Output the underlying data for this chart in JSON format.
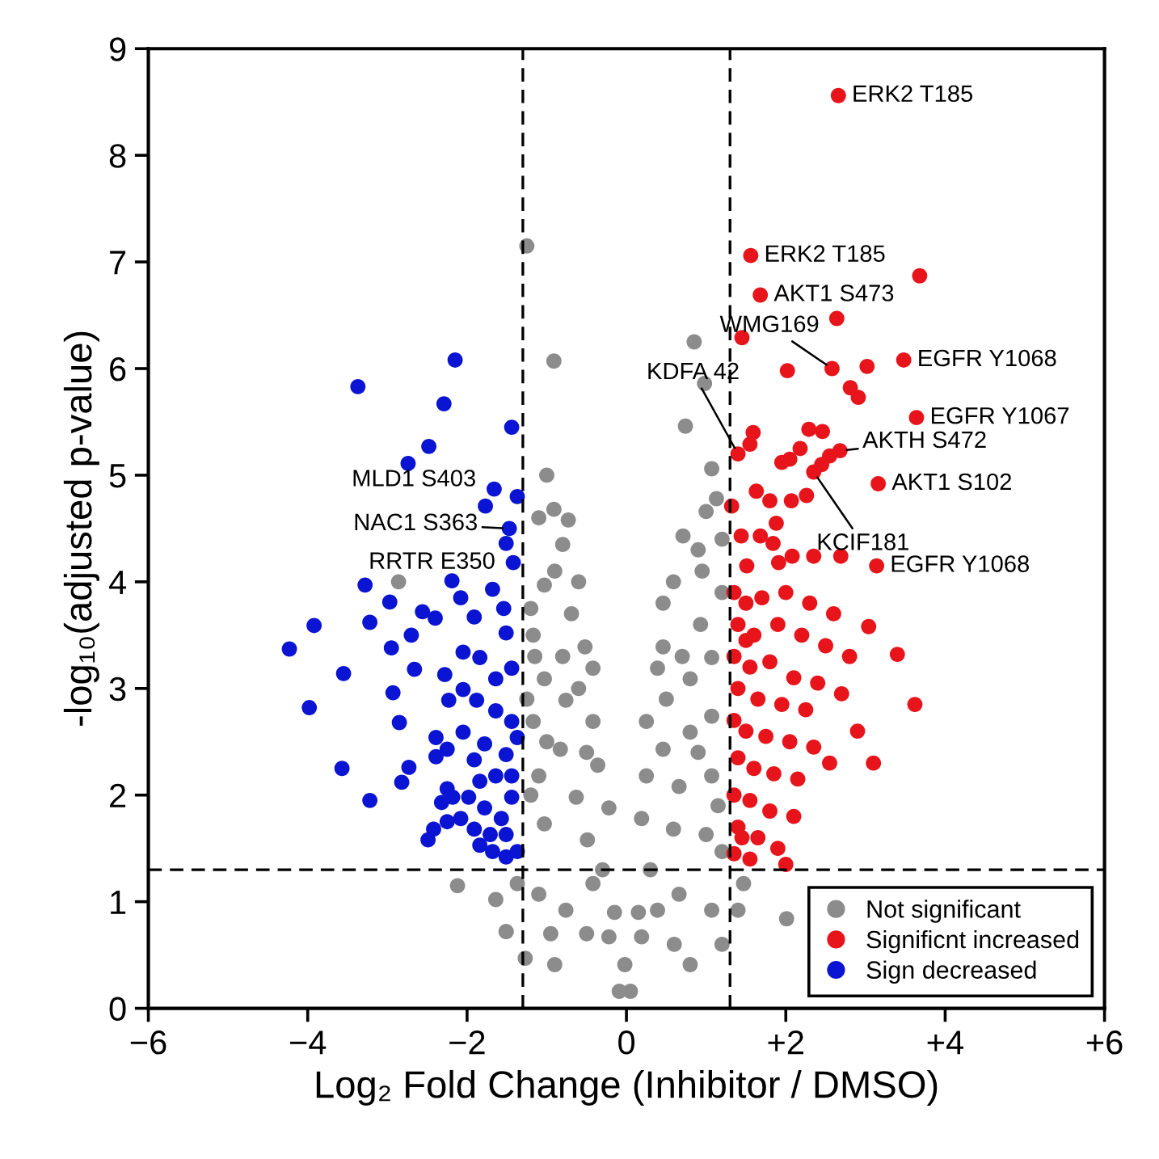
{
  "chart_data": {
    "type": "scatter",
    "xlabel": "Log₂ Fold Change (Inhibitor / DMSO)",
    "ylabel": "-log₁₀(adjusted p-value)",
    "xlim": [
      -6,
      6
    ],
    "ylim": [
      0,
      9
    ],
    "xticks": [
      {
        "value": -6,
        "label": "−6"
      },
      {
        "value": -4,
        "label": "−4"
      },
      {
        "value": -2,
        "label": "−2"
      },
      0,
      {
        "value": 2,
        "label": "+2"
      },
      {
        "value": 4,
        "label": "+4"
      },
      {
        "value": 6,
        "label": "+6"
      }
    ],
    "yticks": [
      0,
      1,
      2,
      3,
      4,
      5,
      6,
      7,
      8,
      9
    ],
    "grid": false,
    "legend": "bottom right",
    "marker": "circle",
    "ref_lines": [
      {
        "axis": "x",
        "value": -1.3,
        "color": "#000000",
        "line_style": "dashed"
      },
      {
        "axis": "x",
        "value": 1.3,
        "color": "#000000",
        "line_style": "dashed"
      },
      {
        "axis": "y",
        "value": 1.3,
        "color": "#000000",
        "line_style": "dashed"
      }
    ],
    "series": [
      {
        "name": "Not significant",
        "color": "#8c8c8c",
        "x": [
          -1.25,
          -0.91,
          0.85,
          0.98,
          0.74,
          -1.0,
          -0.91,
          -0.73,
          1.07,
          1.13,
          1.0,
          0.71,
          0.9,
          -0.8,
          -0.9,
          -1.03,
          -1.2,
          -1.17,
          -0.69,
          -0.52,
          -0.42,
          0.46,
          0.59,
          0.46,
          0.39,
          0.93,
          1.07,
          0.8,
          -1.03,
          -0.76,
          -1.17,
          -0.42,
          -0.83,
          -1.1,
          -0.36,
          -0.63,
          -0.22,
          -1.03,
          -0.49,
          0.25,
          0.46,
          0.8,
          1.07,
          0.25,
          0.66,
          1.07,
          0.19,
          0.59,
          1.0,
          1.2,
          -1.37,
          -1.51,
          -1.1,
          -0.76,
          -0.42,
          -0.22,
          -0.09,
          0.05,
          -0.02,
          0.19,
          0.39,
          0.66,
          1.07,
          1.47,
          1.4,
          2.01,
          -0.9,
          0.8,
          -2.12,
          -1.64,
          -1.51,
          -1.27,
          -2.86,
          -1.2,
          -1.0,
          -0.6,
          -0.8,
          -0.5,
          -0.3,
          0.3,
          0.5,
          0.7,
          0.9,
          1.15,
          -1.25,
          -1.15,
          0.95,
          1.2,
          1.2,
          -0.6,
          -1.1,
          -0.95,
          0.6,
          1.2,
          -0.5,
          -0.15,
          0.15
        ],
        "values": [
          7.15,
          6.07,
          6.25,
          5.86,
          5.46,
          5.0,
          4.68,
          4.58,
          5.06,
          4.78,
          4.66,
          4.43,
          4.3,
          4.35,
          4.1,
          3.97,
          3.75,
          3.5,
          3.7,
          3.39,
          3.19,
          3.8,
          4.0,
          3.39,
          3.19,
          3.6,
          3.29,
          3.09,
          3.09,
          2.89,
          2.69,
          2.69,
          2.43,
          2.18,
          2.28,
          1.98,
          1.88,
          1.73,
          1.58,
          2.69,
          2.43,
          2.59,
          2.74,
          2.18,
          2.08,
          2.18,
          1.78,
          1.68,
          1.63,
          1.47,
          1.17,
          0.72,
          1.07,
          0.92,
          1.17,
          0.67,
          0.16,
          0.16,
          0.41,
          0.67,
          0.92,
          1.07,
          0.92,
          1.17,
          0.92,
          0.84,
          0.41,
          0.41,
          1.15,
          1.02,
          0.72,
          0.47,
          4.0,
          2.0,
          2.5,
          3.0,
          3.3,
          2.4,
          1.3,
          1.3,
          2.9,
          3.3,
          2.4,
          1.9,
          2.9,
          3.3,
          4.1,
          3.9,
          4.4,
          4.0,
          4.6,
          0.7,
          0.6,
          0.6,
          0.7,
          0.9,
          0.9
        ]
      },
      {
        "name": "Significnt increased",
        "color": "#e8141b",
        "x": [
          2.66,
          1.56,
          3.68,
          1.68,
          2.64,
          1.45,
          2.02,
          2.58,
          3.02,
          3.48,
          2.81,
          2.91,
          3.64,
          1.59,
          1.55,
          1.4,
          2.29,
          2.46,
          2.18,
          2.05,
          1.95,
          2.68,
          2.55,
          2.45,
          2.35,
          3.16,
          1.63,
          1.8,
          2.07,
          2.26,
          1.32,
          1.88,
          1.44,
          1.68,
          1.84,
          1.51,
          1.91,
          2.08,
          2.35,
          2.69,
          3.14,
          1.35,
          1.5,
          1.7,
          2.0,
          2.3,
          2.6,
          1.4,
          1.6,
          1.9,
          2.2,
          2.5,
          2.8,
          1.35,
          1.55,
          1.8,
          2.1,
          2.4,
          2.7,
          1.4,
          1.65,
          1.95,
          2.25,
          1.35,
          1.5,
          1.75,
          2.05,
          2.35,
          1.4,
          1.6,
          1.85,
          2.15,
          1.35,
          1.55,
          1.8,
          2.1,
          1.4,
          1.65,
          1.9,
          1.35,
          1.55,
          2.0,
          1.45,
          1.5,
          2.55,
          3.62,
          3.1,
          3.4,
          3.04,
          2.9
        ],
        "values": [
          8.56,
          7.06,
          6.87,
          6.69,
          6.47,
          6.29,
          5.98,
          6.0,
          6.02,
          6.08,
          5.82,
          5.73,
          5.54,
          5.4,
          5.29,
          5.2,
          5.43,
          5.41,
          5.25,
          5.15,
          5.12,
          5.23,
          5.18,
          5.1,
          5.03,
          4.92,
          4.85,
          4.76,
          4.76,
          4.81,
          4.71,
          4.55,
          4.43,
          4.43,
          4.36,
          4.15,
          4.18,
          4.24,
          4.24,
          4.24,
          4.15,
          3.9,
          3.8,
          3.85,
          3.9,
          3.8,
          3.7,
          3.6,
          3.5,
          3.6,
          3.5,
          3.4,
          3.3,
          3.3,
          3.2,
          3.25,
          3.1,
          3.05,
          2.95,
          3.0,
          2.9,
          2.85,
          2.8,
          2.7,
          2.6,
          2.55,
          2.5,
          2.45,
          2.35,
          2.25,
          2.2,
          2.15,
          2.0,
          1.95,
          1.85,
          1.8,
          1.7,
          1.6,
          1.5,
          1.45,
          1.4,
          1.35,
          1.6,
          3.45,
          2.3,
          2.85,
          2.3,
          3.32,
          3.58,
          2.6
        ]
      },
      {
        "name": "Sign decreased",
        "color": "#0a14d2",
        "x": [
          -2.15,
          -3.37,
          -2.29,
          -1.44,
          -2.48,
          -2.74,
          -1.66,
          -1.37,
          -1.77,
          -1.51,
          -1.42,
          -3.28,
          -2.19,
          -1.68,
          -3.92,
          -4.23,
          -3.22,
          -2.97,
          -2.56,
          -2.4,
          -2.95,
          -2.7,
          -3.55,
          -3.98,
          -2.93,
          -2.66,
          -2.85,
          -3.57,
          -2.73,
          -2.82,
          -3.22,
          -2.28,
          -2.23,
          -2.08,
          -1.91,
          -2.05,
          -1.84,
          -1.54,
          -1.51,
          -1.64,
          -1.44,
          -2.05,
          -1.88,
          -1.64,
          -1.44,
          -2.39,
          -2.25,
          -2.05,
          -1.91,
          -1.78,
          -1.51,
          -1.37,
          -2.39,
          -2.25,
          -2.18,
          -2.32,
          -2.08,
          -2.25,
          -2.42,
          -2.49,
          -1.91,
          -1.84,
          -1.68,
          -1.51,
          -1.37,
          -1.98,
          -1.78,
          -1.57,
          -1.44,
          -1.64,
          -1.44,
          -1.84,
          -1.51,
          -1.71,
          -1.47
        ],
        "values": [
          6.08,
          5.83,
          5.67,
          5.45,
          5.27,
          5.11,
          4.87,
          4.8,
          4.71,
          4.36,
          4.18,
          3.97,
          4.01,
          3.93,
          3.59,
          3.37,
          3.62,
          3.81,
          3.72,
          3.66,
          3.38,
          3.5,
          3.14,
          2.82,
          2.96,
          3.18,
          2.68,
          2.25,
          2.26,
          2.12,
          1.95,
          3.13,
          2.89,
          3.85,
          3.67,
          3.34,
          3.29,
          3.75,
          3.52,
          3.09,
          3.19,
          2.99,
          2.89,
          2.79,
          2.69,
          2.54,
          2.43,
          2.59,
          2.33,
          2.48,
          2.38,
          2.54,
          2.36,
          2.06,
          1.98,
          1.93,
          1.78,
          1.75,
          1.68,
          1.58,
          1.68,
          1.53,
          1.47,
          1.42,
          1.47,
          1.98,
          1.88,
          1.78,
          1.98,
          2.18,
          2.18,
          2.13,
          1.63,
          1.63,
          4.5
        ]
      }
    ],
    "annotations": [
      {
        "text": "ERK2 T185",
        "x": 2.66,
        "y": 8.56
      },
      {
        "text": "ERK2 T185",
        "x": 1.56,
        "y": 7.06
      },
      {
        "text": "AKT1 S473",
        "x": 1.68,
        "y": 6.69
      },
      {
        "text": "WMG169",
        "x": 2.58,
        "y": 6.0
      },
      {
        "text": "EGFR Y1068",
        "x": 3.48,
        "y": 6.08
      },
      {
        "text": "KDFA 42",
        "x": 1.4,
        "y": 5.2
      },
      {
        "text": "EGFR Y1067",
        "x": 3.64,
        "y": 5.54
      },
      {
        "text": "AKTH S472",
        "x": 2.68,
        "y": 5.23
      },
      {
        "text": "AKT1 S102",
        "x": 3.16,
        "y": 4.92
      },
      {
        "text": "KCIF181",
        "x": 2.35,
        "y": 5.03
      },
      {
        "text": "EGFR Y1068",
        "x": 3.14,
        "y": 4.15
      },
      {
        "text": "MLD1 S403",
        "x": -1.66,
        "y": 4.87
      },
      {
        "text": "NAC1 S363",
        "x": -1.47,
        "y": 4.5
      },
      {
        "text": "RRTR E350",
        "x": -1.42,
        "y": 4.18
      }
    ]
  }
}
